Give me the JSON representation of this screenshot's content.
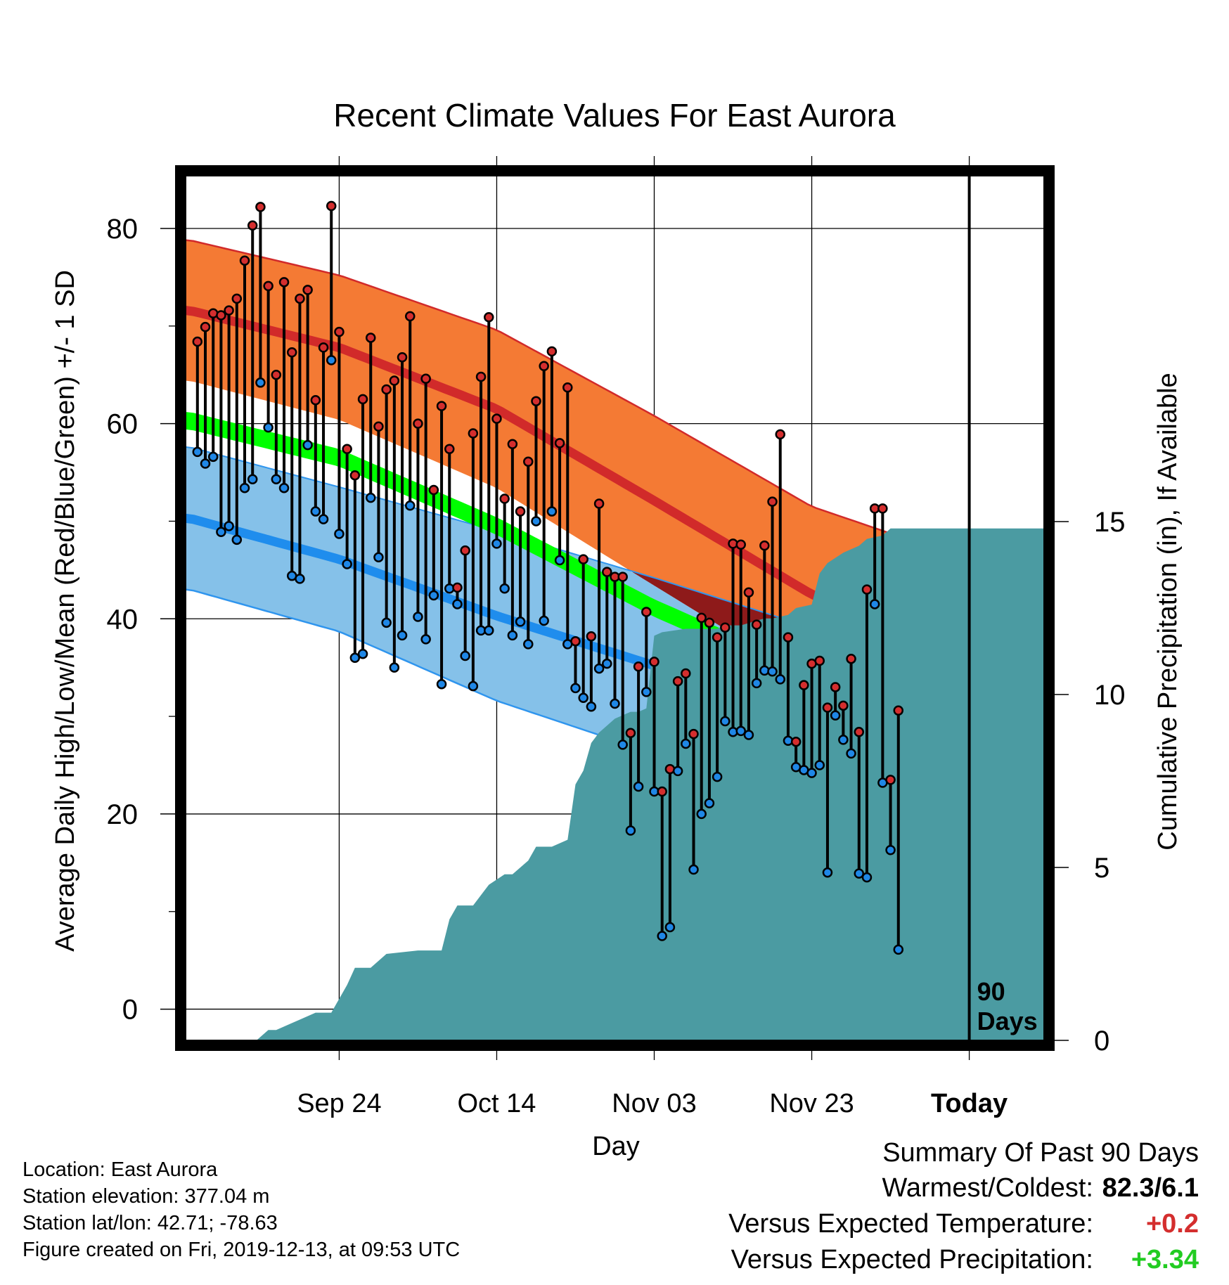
{
  "chart_data": {
    "type": "climate-range",
    "title": "Recent Climate Values For East Aurora",
    "ylabel": "Average Daily High/Low/Mean (Red/Blue/Green) +/- 1 SD",
    "y2label": "Cumulative Precipitation (in), If Available",
    "xlabel": "Day",
    "ylim": [
      -3.2,
      85.4
    ],
    "y_ticks": [
      "0",
      "20",
      "40",
      "60",
      "80"
    ],
    "y2lim": [
      0,
      25
    ],
    "y2_ticks": [
      "0",
      "5",
      "10",
      "15"
    ],
    "x_range_days": [
      -99.5,
      9.5
    ],
    "x_ticks": [
      {
        "day": -80,
        "label": "Sep 24"
      },
      {
        "day": -60,
        "label": "Oct 14"
      },
      {
        "day": -40,
        "label": "Nov 03"
      },
      {
        "day": -20,
        "label": "Nov 23"
      },
      {
        "day": 0,
        "label": "Today"
      }
    ],
    "today_marker": "90\nDays",
    "grid": true,
    "normal_high": {
      "days": [
        -99,
        -80,
        -60,
        -40,
        -20,
        0,
        9
      ],
      "mean": [
        71.6,
        67.8,
        61.5,
        52.1,
        42.5,
        35.5,
        32.5
      ],
      "sd": [
        7.2,
        7.4,
        8.1,
        8.7,
        9.0,
        10.5,
        11.2
      ]
    },
    "normal_low": {
      "days": [
        -99,
        -80,
        -60,
        -40,
        -20,
        0,
        9
      ],
      "mean": [
        50.3,
        46.1,
        40.3,
        35.2,
        28.9,
        22.8,
        19.1
      ],
      "sd": [
        7.3,
        7.4,
        8.7,
        9.0,
        10.2,
        10.7,
        10.5
      ]
    },
    "normal_mean": {
      "days": [
        -99,
        -80,
        -60,
        -40,
        -20,
        0,
        9
      ],
      "mean": [
        60.3,
        56.5,
        49.5,
        41.1,
        34.0,
        27.5,
        25.1
      ],
      "half_width": 0.9
    },
    "daily": [
      {
        "day": -98,
        "high": 68.4,
        "low": 57.1
      },
      {
        "day": -97,
        "high": 69.9,
        "low": 55.9
      },
      {
        "day": -96,
        "high": 71.3,
        "low": 56.6
      },
      {
        "day": -95,
        "high": 71.1,
        "low": 48.9
      },
      {
        "day": -94,
        "high": 71.6,
        "low": 49.5
      },
      {
        "day": -93,
        "high": 72.8,
        "low": 48.1
      },
      {
        "day": -92,
        "high": 76.7,
        "low": 53.4
      },
      {
        "day": -91,
        "high": 80.3,
        "low": 54.3
      },
      {
        "day": -90,
        "high": 82.2,
        "low": 64.2
      },
      {
        "day": -89,
        "high": 74.1,
        "low": 59.6
      },
      {
        "day": -88,
        "high": 65.0,
        "low": 54.3
      },
      {
        "day": -87,
        "high": 74.5,
        "low": 53.4
      },
      {
        "day": -86,
        "high": 67.3,
        "low": 44.4
      },
      {
        "day": -85,
        "high": 72.8,
        "low": 44.1
      },
      {
        "day": -84,
        "high": 73.7,
        "low": 57.8
      },
      {
        "day": -83,
        "high": 62.4,
        "low": 51.0
      },
      {
        "day": -82,
        "high": 67.8,
        "low": 50.2
      },
      {
        "day": -81,
        "high": 82.3,
        "low": 66.5
      },
      {
        "day": -80,
        "high": 69.4,
        "low": 48.7
      },
      {
        "day": -79,
        "high": 57.4,
        "low": 45.6
      },
      {
        "day": -78,
        "high": 54.7,
        "low": 36.0
      },
      {
        "day": -77,
        "high": 62.5,
        "low": 36.4
      },
      {
        "day": -76,
        "high": 68.8,
        "low": 52.4
      },
      {
        "day": -75,
        "high": 59.7,
        "low": 46.3
      },
      {
        "day": -74,
        "high": 63.5,
        "low": 39.6
      },
      {
        "day": -73,
        "high": 64.4,
        "low": 35.0
      },
      {
        "day": -72,
        "high": 66.8,
        "low": 38.3
      },
      {
        "day": -71,
        "high": 71.0,
        "low": 51.6
      },
      {
        "day": -70,
        "high": 60.0,
        "low": 40.2
      },
      {
        "day": -69,
        "high": 64.6,
        "low": 37.9
      },
      {
        "day": -68,
        "high": 53.2,
        "low": 42.4
      },
      {
        "day": -67,
        "high": 61.8,
        "low": 33.3
      },
      {
        "day": -66,
        "high": 57.4,
        "low": 43.1
      },
      {
        "day": -65,
        "high": 43.2,
        "low": 41.5
      },
      {
        "day": -64,
        "high": 47.0,
        "low": 36.2
      },
      {
        "day": -63,
        "high": 59.0,
        "low": 33.1
      },
      {
        "day": -62,
        "high": 64.8,
        "low": 38.8
      },
      {
        "day": -61,
        "high": 70.9,
        "low": 38.8
      },
      {
        "day": -60,
        "high": 60.5,
        "low": 47.7
      },
      {
        "day": -59,
        "high": 52.3,
        "low": 43.1
      },
      {
        "day": -58,
        "high": 57.9,
        "low": 38.3
      },
      {
        "day": -57,
        "high": 51.0,
        "low": 39.7
      },
      {
        "day": -56,
        "high": 56.1,
        "low": 37.4
      },
      {
        "day": -55,
        "high": 62.3,
        "low": 50.0
      },
      {
        "day": -54,
        "high": 65.9,
        "low": 39.8
      },
      {
        "day": -53,
        "high": 67.4,
        "low": 51.0
      },
      {
        "day": -52,
        "high": 58.0,
        "low": 46.0
      },
      {
        "day": -51,
        "high": 63.7,
        "low": 37.4
      },
      {
        "day": -50,
        "high": 37.7,
        "low": 32.9
      },
      {
        "day": -49,
        "high": 46.1,
        "low": 31.9
      },
      {
        "day": -48,
        "high": 38.2,
        "low": 31.0
      },
      {
        "day": -47,
        "high": 51.8,
        "low": 34.9
      },
      {
        "day": -46,
        "high": 44.8,
        "low": 35.4
      },
      {
        "day": -45,
        "high": 44.3,
        "low": 31.3
      },
      {
        "day": -44,
        "high": 44.3,
        "low": 27.1
      },
      {
        "day": -43,
        "high": 28.3,
        "low": 18.3
      },
      {
        "day": -42,
        "high": 35.1,
        "low": 22.8
      },
      {
        "day": -41,
        "high": 40.7,
        "low": 32.5
      },
      {
        "day": -40,
        "high": 35.6,
        "low": 22.3
      },
      {
        "day": -39,
        "high": 22.3,
        "low": 7.5
      },
      {
        "day": -38,
        "high": 24.6,
        "low": 8.4
      },
      {
        "day": -37,
        "high": 33.6,
        "low": 24.4
      },
      {
        "day": -36,
        "high": 34.4,
        "low": 27.2
      },
      {
        "day": -35,
        "high": 28.2,
        "low": 14.3
      },
      {
        "day": -34,
        "high": 40.1,
        "low": 20.0
      },
      {
        "day": -33,
        "high": 39.6,
        "low": 21.1
      },
      {
        "day": -32,
        "high": 38.1,
        "low": 23.8
      },
      {
        "day": -31,
        "high": 39.1,
        "low": 29.5
      },
      {
        "day": -30,
        "high": 47.7,
        "low": 28.4
      },
      {
        "day": -29,
        "high": 47.6,
        "low": 28.5
      },
      {
        "day": -28,
        "high": 42.7,
        "low": 28.1
      },
      {
        "day": -27,
        "high": 39.4,
        "low": 33.4
      },
      {
        "day": -26,
        "high": 47.5,
        "low": 34.7
      },
      {
        "day": -25,
        "high": 52.0,
        "low": 34.6
      },
      {
        "day": -24,
        "high": 58.9,
        "low": 33.8
      },
      {
        "day": -23,
        "high": 38.1,
        "low": 27.5
      },
      {
        "day": -22,
        "high": 27.4,
        "low": 24.8
      },
      {
        "day": -21,
        "high": 33.2,
        "low": 24.5
      },
      {
        "day": -20,
        "high": 35.4,
        "low": 24.2
      },
      {
        "day": -19,
        "high": 35.7,
        "low": 25.0
      },
      {
        "day": -18,
        "high": 30.9,
        "low": 14.0
      },
      {
        "day": -17,
        "high": 33.0,
        "low": 30.1
      },
      {
        "day": -16,
        "high": 31.1,
        "low": 27.6
      },
      {
        "day": -15,
        "high": 35.9,
        "low": 26.2
      },
      {
        "day": -14,
        "high": 28.4,
        "low": 13.9
      },
      {
        "day": -13,
        "high": 43.0,
        "low": 13.5
      },
      {
        "day": -12,
        "high": 51.3,
        "low": 41.5
      },
      {
        "day": -11,
        "high": 51.3,
        "low": 23.2
      },
      {
        "day": -10,
        "high": 23.5,
        "low": 16.3
      },
      {
        "day": -9,
        "high": 30.6,
        "low": 6.1
      }
    ],
    "cumulative_precip": {
      "days": [
        -90.5,
        -89,
        -88,
        -86,
        -85,
        -83,
        -81,
        -79,
        -78,
        -76,
        -74,
        -70,
        -67,
        -66,
        -65,
        -63,
        -61,
        -59,
        -58,
        -56,
        -55,
        -53,
        -51,
        -50,
        -49,
        -48,
        -47,
        -46,
        -45,
        -43,
        -42,
        -41,
        -40,
        -39,
        -36,
        -34,
        -32,
        -31,
        -29,
        -26,
        -25,
        -23,
        -22,
        -20,
        -19,
        -18,
        -16,
        -14,
        -13,
        -11,
        -10,
        -9,
        9.5
      ],
      "values": [
        0,
        0.3,
        0.3,
        0.5,
        0.6,
        0.8,
        0.8,
        1.6,
        2.1,
        2.1,
        2.5,
        2.6,
        2.6,
        3.5,
        3.9,
        3.9,
        4.5,
        4.8,
        4.8,
        5.2,
        5.6,
        5.6,
        5.8,
        7.4,
        7.8,
        8.6,
        8.9,
        9.1,
        9.3,
        9.5,
        9.5,
        9.6,
        11.7,
        11.8,
        11.9,
        11.9,
        11.9,
        12.0,
        12.0,
        12.2,
        12.2,
        12.3,
        12.5,
        12.6,
        13.5,
        13.8,
        14.1,
        14.3,
        14.5,
        14.6,
        14.8,
        14.8,
        14.8
      ]
    }
  },
  "info": {
    "location": "Location: East Aurora",
    "elevation": "Station elevation: 377.04 m",
    "latlon": "Station lat/lon: 42.71; -78.63",
    "created": "Figure created on Fri, 2019-12-13, at 09:53 UTC"
  },
  "summary": {
    "title": "Summary Of Past 90 Days",
    "warmest_label": "Warmest/Coldest:",
    "warmest_value": "82.3/6.1",
    "temp_label": "Versus Expected Temperature:",
    "temp_value": "+0.2",
    "precip_label": "Versus Expected Precipitation:",
    "precip_value": "+3.34"
  },
  "colors": {
    "high_band": "#f47a34",
    "high_mean": "#d12a2a",
    "high_edge": "#d12a2a",
    "low_band": "#85c1e9",
    "low_mean": "#1f8ded",
    "low_edge": "#2f95ee",
    "mean_band": "#00ff00",
    "overlap": "#8e1a1a",
    "precip": "#4b9ba2",
    "temp_anomaly": "#d42e2e",
    "precip_anomaly": "#22cc22",
    "high_dot": "#d42e2e",
    "low_dot": "#1f87e6"
  }
}
